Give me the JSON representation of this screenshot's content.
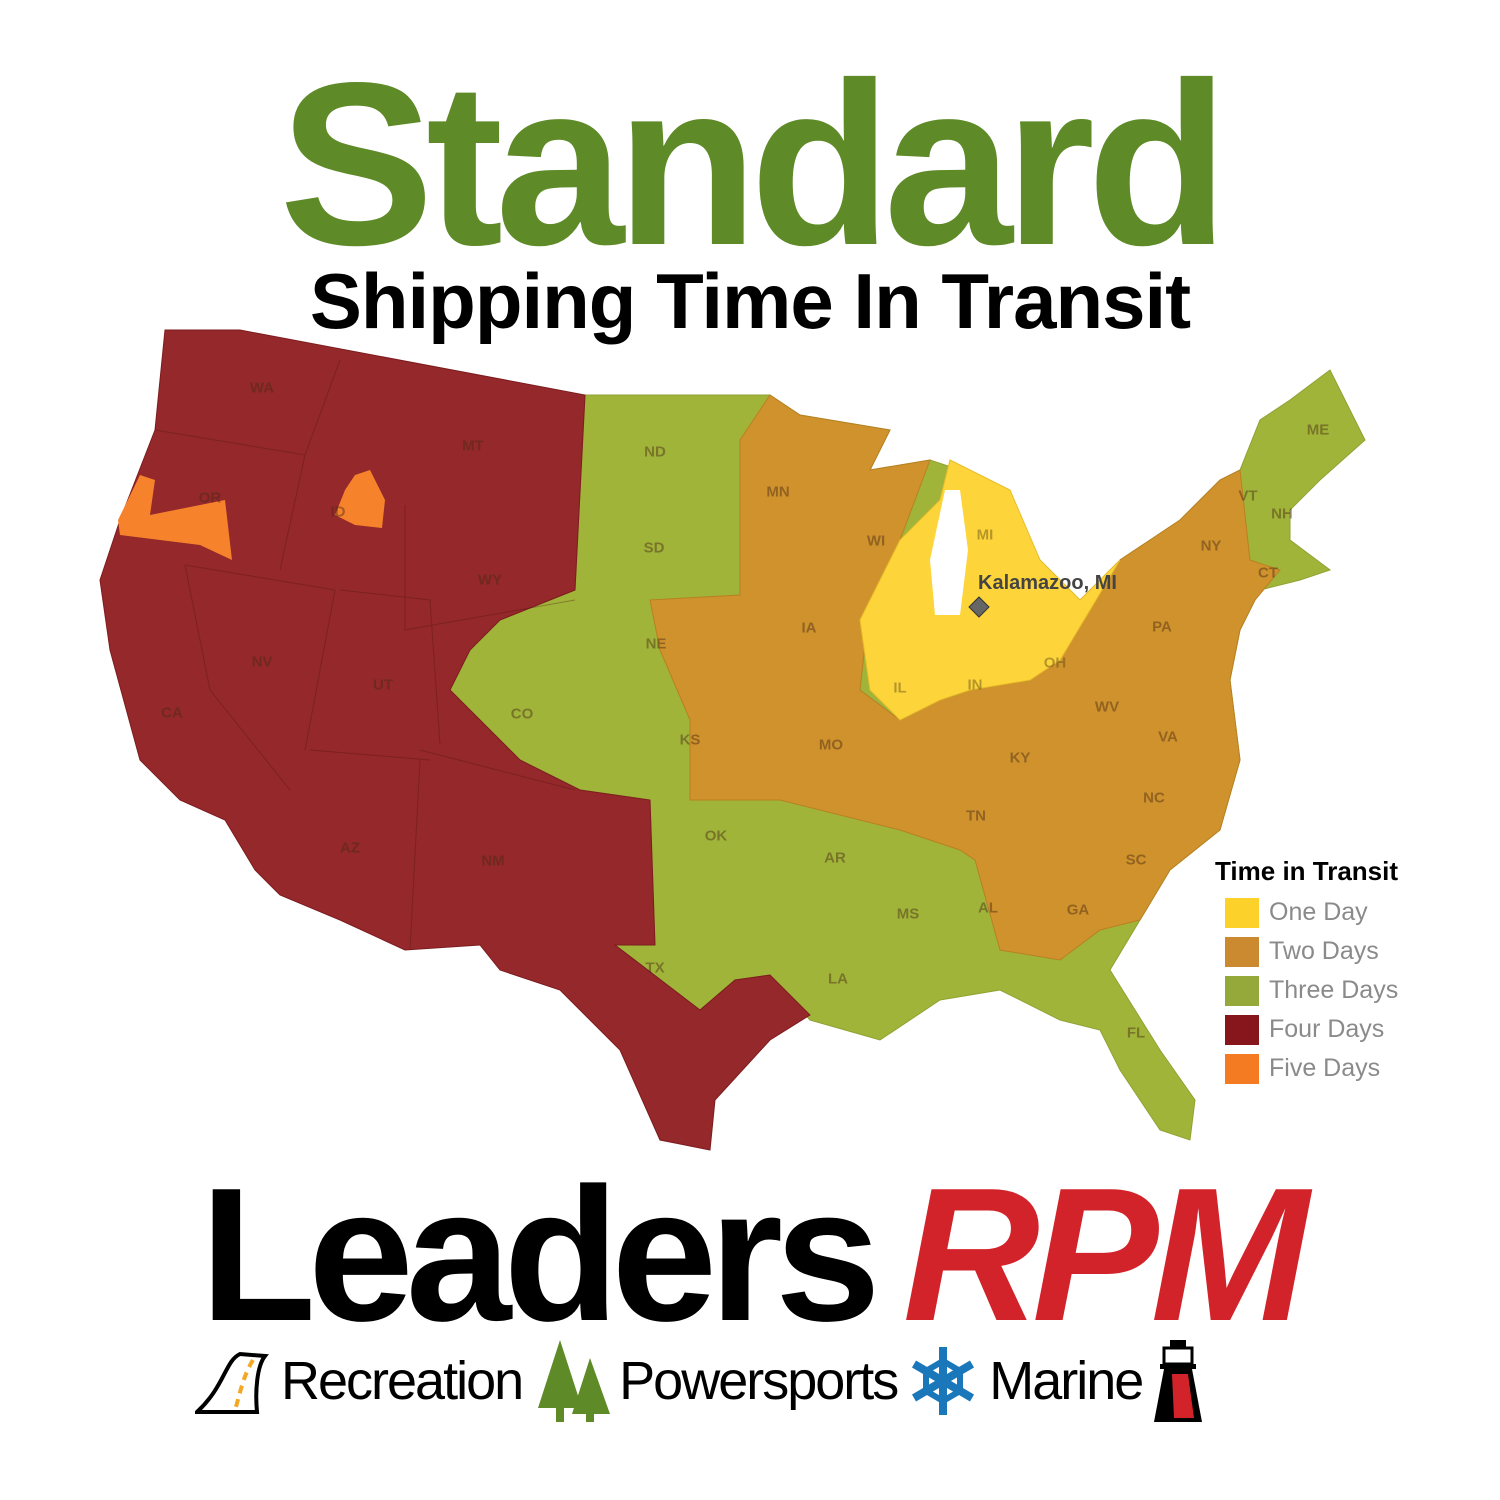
{
  "title": "Standard",
  "subtitle": "Shipping Time In Transit",
  "map": {
    "origin": "Kalamazoo, MI",
    "states": [
      "WA",
      "OR",
      "MT",
      "ID",
      "WY",
      "NV",
      "CA",
      "UT",
      "AZ",
      "NM",
      "CO",
      "ND",
      "SD",
      "NE",
      "KS",
      "OK",
      "TX",
      "MN",
      "IA",
      "MO",
      "AR",
      "LA",
      "WI",
      "IL",
      "MI",
      "IN",
      "OH",
      "KY",
      "TN",
      "MS",
      "AL",
      "GA",
      "FL",
      "SC",
      "NC",
      "VA",
      "WV",
      "PA",
      "NY",
      "VT",
      "NH",
      "ME",
      "CT"
    ],
    "colors": {
      "one_day": "#fdd53b",
      "two_days": "#cf922c",
      "three_days": "#a1b43a",
      "four_days": "#94282a",
      "five_days": "#f6822c"
    }
  },
  "legend": {
    "title": "Time in Transit",
    "items": [
      {
        "label": "One Day",
        "color": "#fcd22a"
      },
      {
        "label": "Two Days",
        "color": "#cc8a30"
      },
      {
        "label": "Three Days",
        "color": "#95a93b"
      },
      {
        "label": "Four Days",
        "color": "#86161c"
      },
      {
        "label": "Five Days",
        "color": "#f47b22"
      }
    ]
  },
  "brand": {
    "name_black": "Leaders",
    "name_red": "RPM",
    "divisions": [
      "Recreation",
      "Powersports",
      "Marine"
    ]
  }
}
